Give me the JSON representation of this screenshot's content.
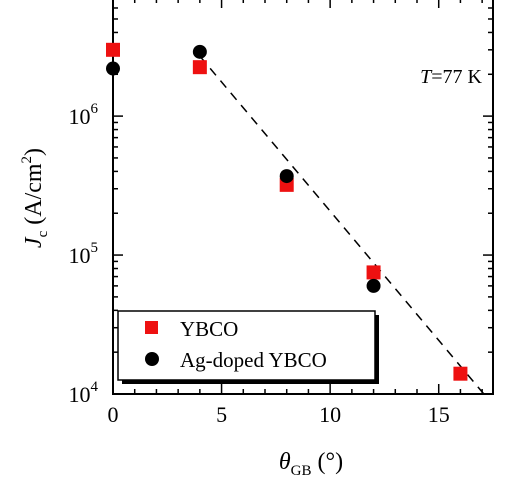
{
  "chart_data": {
    "type": "scatter",
    "xlabel": {
      "symbol": "θ",
      "sub": "GB",
      "unit": " (°)"
    },
    "ylabel": {
      "symbol": "J",
      "sub": "c",
      "unit_open": " (A/cm",
      "unit_sup": "2",
      "unit_close": ")"
    },
    "xlim": [
      0,
      17.5
    ],
    "ylim_log10": [
      4,
      6.85
    ],
    "x_ticks": [
      0,
      5,
      10,
      15
    ],
    "y_ticks": [
      {
        "base": "10",
        "exp": "6",
        "value": 1000000
      },
      {
        "base": "10",
        "exp": "5",
        "value": 100000
      },
      {
        "base": "10",
        "exp": "4",
        "value": 10000
      }
    ],
    "annotation": {
      "italic": "T",
      "rest": "=77 K"
    },
    "series": [
      {
        "name": "YBCO",
        "marker": "square",
        "color": "#ee1111",
        "points": [
          {
            "x": 0,
            "y": 3000000
          },
          {
            "x": 4,
            "y": 2250000
          },
          {
            "x": 8,
            "y": 320000
          },
          {
            "x": 12,
            "y": 75000
          },
          {
            "x": 16,
            "y": 14000
          }
        ]
      },
      {
        "name": "Ag-doped YBCO",
        "marker": "circle",
        "color": "#000000",
        "points": [
          {
            "x": 0,
            "y": 2200000
          },
          {
            "x": 4,
            "y": 2900000
          },
          {
            "x": 8,
            "y": 370000
          },
          {
            "x": 12,
            "y": 60000
          }
        ]
      }
    ],
    "fit_line": {
      "style": "dashed",
      "from": {
        "x": 4,
        "y": 2700000
      },
      "to": {
        "x": 17.2,
        "y": 9500
      }
    },
    "legend_placement": "bottom-left"
  }
}
